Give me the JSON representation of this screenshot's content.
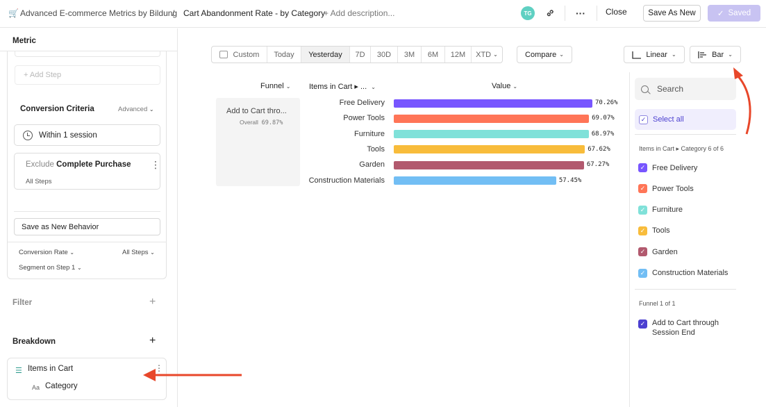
{
  "header": {
    "app_icon": "cart-icon",
    "breadcrumb": {
      "project": "Advanced E-commerce Metrics by Bildung",
      "separator": "/",
      "report": "Cart Abandonment Rate - by Category",
      "add_description": "+ Add description..."
    },
    "avatar_initials": "TG",
    "close_label": "Close",
    "save_as_new_label": "Save As New",
    "saved_label": "Saved"
  },
  "left_panel": {
    "metric_label": "Metric",
    "add_step_label": "+ Add Step",
    "conversion_criteria": {
      "title": "Conversion Criteria",
      "advanced_label": "Advanced",
      "within_label": "Within 1 session",
      "exclude_prefix": "Exclude",
      "exclude_event": "Complete Purchase",
      "exclude_scope": "All Steps"
    },
    "save_behavior_label": "Save as New Behavior",
    "conversion_rate_label": "Conversion Rate",
    "all_steps_label": "All Steps",
    "segment_label": "Segment on Step 1",
    "filter_label": "Filter",
    "breakdown_label": "Breakdown",
    "breakdown": {
      "property": "Items in Cart",
      "type_glyph": "Aa",
      "sub_property": "Category"
    }
  },
  "toolbar": {
    "date_ranges": [
      "Custom",
      "Today",
      "Yesterday",
      "7D",
      "30D",
      "3M",
      "6M",
      "12M",
      "XTD"
    ],
    "active_range": "Yesterday",
    "compare_label": "Compare",
    "scale_label": "Linear",
    "chart_type_label": "Bar"
  },
  "table": {
    "col_funnel": "Funnel",
    "col_items": "Items in Cart ▸ ...",
    "col_value": "Value",
    "funnel_name": "Add to Cart thro...",
    "overall_label": "Overall",
    "overall_value": "69.87%"
  },
  "chart_data": {
    "type": "bar",
    "orientation": "horizontal",
    "categories": [
      "Free Delivery",
      "Power Tools",
      "Furniture",
      "Tools",
      "Garden",
      "Construction Materials"
    ],
    "values": [
      70.26,
      69.07,
      68.97,
      67.62,
      67.27,
      57.45
    ],
    "value_labels": [
      "70.26%",
      "69.07%",
      "68.97%",
      "67.62%",
      "67.27%",
      "57.45%"
    ],
    "colors": [
      "#7856ff",
      "#ff7557",
      "#80e1d9",
      "#f8bc3b",
      "#b2596e",
      "#72bef4"
    ],
    "xlim": [
      0,
      70.26
    ]
  },
  "legend": {
    "search_placeholder": "Search",
    "select_all_label": "Select all",
    "section1_label": "Items in Cart ▸ Category 6 of 6",
    "items": [
      "Free Delivery",
      "Power Tools",
      "Furniture",
      "Tools",
      "Garden",
      "Construction Materials"
    ],
    "section2_label": "Funnel 1 of 1",
    "funnel_item": "Add to Cart through Session End",
    "funnel_color": "#4b3fd0"
  }
}
